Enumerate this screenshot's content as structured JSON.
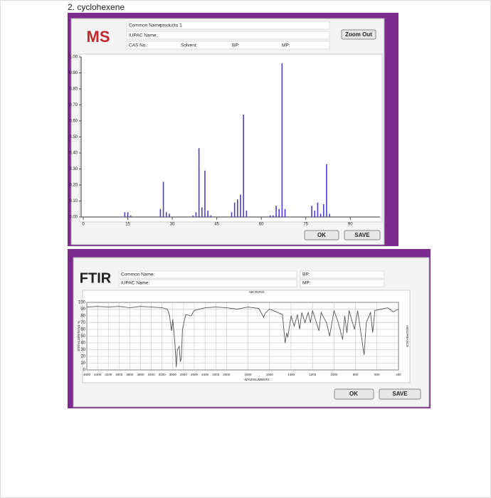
{
  "heading": "2. cyclohexene",
  "ms_window": {
    "logo": "MS",
    "common_name_label": "Common Name:",
    "common_name": "producto 1",
    "iupac_label": "IUPAC Name:",
    "cas_label": "CAS No.:",
    "solvent_label": "Solvent:",
    "bp_label": "BP:",
    "mp_label": "MP:",
    "zoom_button": "Zoom Out",
    "ok_button": "OK",
    "save_button": "SAVE"
  },
  "ftir_window": {
    "logo": "FTIR",
    "common_name_label": "Common Name:",
    "iupac_label": "IUPAC Name:",
    "bp_label": "BP:",
    "mp_label": "MP:",
    "ok_button": "OK",
    "save_button": "SAVE"
  },
  "chart_data": [
    {
      "type": "bar",
      "color": "#4b3fd1",
      "x": [
        14,
        15,
        16,
        26,
        27,
        28,
        29,
        37,
        38,
        39,
        40,
        41,
        42,
        43,
        50,
        51,
        52,
        53,
        54,
        55,
        63,
        64,
        65,
        66,
        67,
        68,
        77,
        78,
        79,
        80,
        81,
        82,
        83
      ],
      "values": [
        0.03,
        0.03,
        0.01,
        0.05,
        0.22,
        0.03,
        0.02,
        0.01,
        0.03,
        0.43,
        0.06,
        0.29,
        0.04,
        0.01,
        0.03,
        0.09,
        0.11,
        0.14,
        0.64,
        0.04,
        0.01,
        0.01,
        0.07,
        0.05,
        0.96,
        0.05,
        0.07,
        0.04,
        0.09,
        0.02,
        0.08,
        0.33,
        0.02
      ],
      "xlim": [
        0,
        100
      ],
      "ylim": [
        0,
        1
      ],
      "xticks": [
        0,
        15,
        30,
        45,
        60,
        75,
        90
      ],
      "yticks": [
        {
          "value": 0,
          "label": "0.00"
        },
        {
          "value": 0.1,
          "label": "0.10"
        },
        {
          "value": 0.2,
          "label": "0.20"
        },
        {
          "value": 0.3,
          "label": "0.30"
        },
        {
          "value": 0.4,
          "label": "0.40"
        },
        {
          "value": 0.5,
          "label": "0.50"
        },
        {
          "value": 0.6,
          "label": "0.60"
        },
        {
          "value": 0.7,
          "label": "0.70"
        },
        {
          "value": 0.8,
          "label": "0.80"
        },
        {
          "value": 0.9,
          "label": "0.90"
        },
        {
          "value": 1,
          "label": "1.00"
        }
      ],
      "grid": false
    },
    {
      "type": "line",
      "color": "#555555",
      "x_label": "WAVENUMBERS",
      "y_label": "% TRANSMITTANCE",
      "y2_label": "ABSORBANCE",
      "top_label": "MICRONS",
      "x": [
        4600,
        4400,
        4200,
        4000,
        3800,
        3600,
        3400,
        3200,
        3100,
        3060,
        3025,
        3000,
        2960,
        2935,
        2915,
        2880,
        2860,
        2840,
        2820,
        2760,
        2660,
        2600,
        2400,
        2200,
        2000,
        1900,
        1800,
        1700,
        1655,
        1640,
        1600,
        1480,
        1455,
        1440,
        1430,
        1400,
        1370,
        1340,
        1320,
        1300,
        1270,
        1240,
        1220,
        1200,
        1140,
        1120,
        1070,
        1040,
        1000,
        960,
        920,
        900,
        880,
        860,
        810,
        780,
        720,
        700,
        660,
        640,
        620,
        500,
        450,
        400
      ],
      "values": [
        93,
        94,
        93,
        94,
        92,
        94,
        93,
        92,
        90,
        80,
        58,
        75,
        40,
        4,
        30,
        35,
        12,
        18,
        60,
        82,
        80,
        88,
        92,
        93,
        92,
        90,
        93,
        91,
        78,
        84,
        90,
        82,
        40,
        55,
        48,
        80,
        65,
        82,
        60,
        85,
        70,
        85,
        70,
        88,
        58,
        85,
        70,
        50,
        88,
        70,
        45,
        80,
        55,
        88,
        60,
        88,
        22,
        70,
        85,
        55,
        88,
        92,
        86,
        90
      ],
      "xlim": [
        4600,
        400
      ],
      "ylim": [
        0,
        100
      ],
      "xticks": [
        4600,
        4400,
        4200,
        4000,
        3800,
        3600,
        3400,
        3200,
        3000,
        2800,
        2600,
        2400,
        2200,
        2000,
        1800,
        1600,
        1400,
        1200,
        1000,
        800,
        600,
        400
      ],
      "yticks": [
        0,
        10,
        20,
        30,
        40,
        50,
        60,
        70,
        80,
        90,
        100
      ],
      "grid": true
    }
  ]
}
